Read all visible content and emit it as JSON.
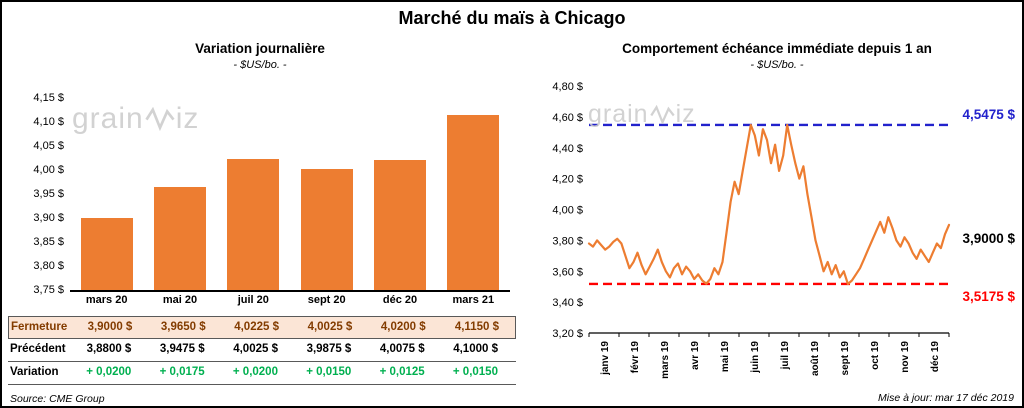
{
  "page": {
    "title": "Marché du maïs à Chicago",
    "source": "Source: CME Group",
    "updated": "Mise à jour: mar 17 déc 2019"
  },
  "watermark": {
    "part1": "grain",
    "part2": "iz"
  },
  "chart_data": [
    {
      "type": "bar",
      "title": "Variation journalière",
      "subtitle": "- $US/bo. -",
      "categories": [
        "mars 20",
        "mai 20",
        "juil 20",
        "sept 20",
        "déc 20",
        "mars 21"
      ],
      "values": [
        3.9,
        3.965,
        4.0225,
        4.0025,
        4.02,
        4.115
      ],
      "ylim": [
        3.75,
        4.15
      ],
      "ytick_labels": [
        "4,15 $",
        "4,10 $",
        "4,05 $",
        "4,00 $",
        "3,95 $",
        "3,90 $",
        "3,85 $",
        "3,80 $",
        "3,75 $"
      ],
      "bar_color": "#ED7D31",
      "grid": false,
      "legend": false
    },
    {
      "type": "line",
      "title": "Comportement échéance immédiate depuis 1 an",
      "subtitle": "- $US/bo. -",
      "x_labels": [
        "janv 19",
        "févr 19",
        "mars 19",
        "avr 19",
        "mai 19",
        "juin 19",
        "juil 19",
        "août 19",
        "sept 19",
        "oct 19",
        "nov 19",
        "déc 19"
      ],
      "ylim": [
        3.2,
        4.8
      ],
      "ytick_labels": [
        "4,80 $",
        "4,60 $",
        "4,40 $",
        "4,20 $",
        "4,00 $",
        "3,80 $",
        "3,60 $",
        "3,40 $",
        "3,20 $"
      ],
      "line_color": "#ED7D31",
      "high_line": {
        "value": 4.5475,
        "label": "4,5475 $",
        "color": "#2222CC"
      },
      "low_line": {
        "value": 3.5175,
        "label": "3,5175 $",
        "color": "#FF0000"
      },
      "last_point": {
        "value": 3.9,
        "label": "3,9000 $",
        "color": "#000000"
      },
      "grid": false,
      "legend": false,
      "series": [
        {
          "name": "échéance immédiate",
          "values": [
            3.78,
            3.76,
            3.8,
            3.77,
            3.74,
            3.76,
            3.79,
            3.81,
            3.78,
            3.7,
            3.62,
            3.66,
            3.72,
            3.64,
            3.58,
            3.63,
            3.68,
            3.74,
            3.66,
            3.6,
            3.56,
            3.62,
            3.65,
            3.58,
            3.63,
            3.6,
            3.55,
            3.58,
            3.54,
            3.52,
            3.55,
            3.62,
            3.58,
            3.66,
            3.85,
            4.05,
            4.18,
            4.1,
            4.25,
            4.4,
            4.5475,
            4.48,
            4.35,
            4.52,
            4.45,
            4.3,
            4.42,
            4.25,
            4.35,
            4.5475,
            4.42,
            4.3,
            4.2,
            4.28,
            4.1,
            3.95,
            3.8,
            3.7,
            3.6,
            3.66,
            3.58,
            3.64,
            3.56,
            3.6,
            3.5175,
            3.54,
            3.58,
            3.62,
            3.68,
            3.74,
            3.8,
            3.86,
            3.92,
            3.85,
            3.95,
            3.88,
            3.8,
            3.76,
            3.82,
            3.78,
            3.72,
            3.68,
            3.74,
            3.7,
            3.66,
            3.72,
            3.78,
            3.75,
            3.84,
            3.9
          ]
        }
      ]
    }
  ],
  "table": {
    "rows": [
      {
        "label": "Fermeture",
        "values": [
          "3,9000 $",
          "3,9650 $",
          "4,0225 $",
          "4,0025 $",
          "4,0200 $",
          "4,1150 $"
        ]
      },
      {
        "label": "Précédent",
        "values": [
          "3,8800 $",
          "3,9475 $",
          "4,0025 $",
          "3,9875 $",
          "4,0075 $",
          "4,1000 $"
        ]
      },
      {
        "label": "Variation",
        "values": [
          "+ 0,0200",
          "+ 0,0175",
          "+ 0,0200",
          "+ 0,0150",
          "+ 0,0125",
          "+ 0,0150"
        ]
      }
    ]
  }
}
